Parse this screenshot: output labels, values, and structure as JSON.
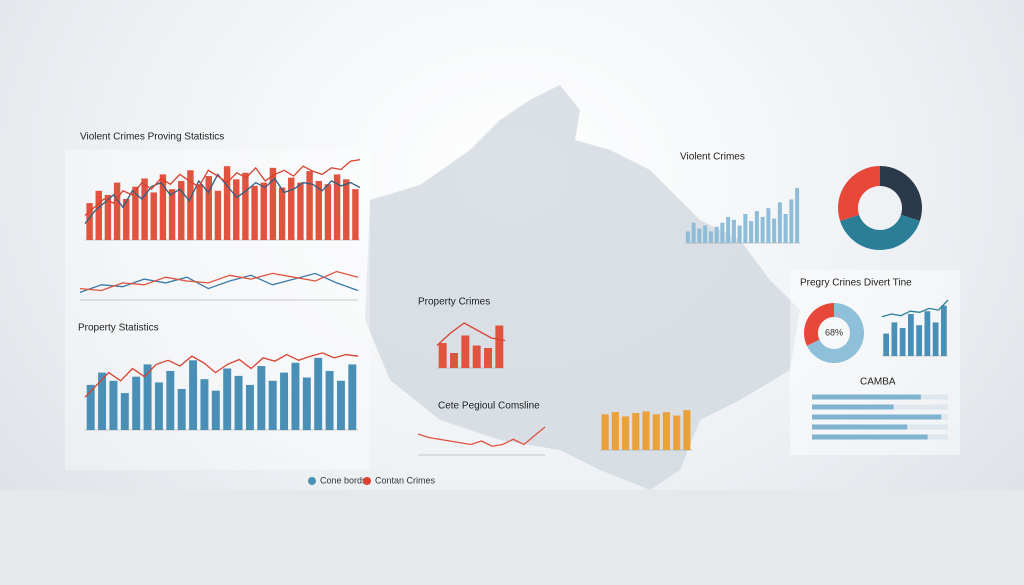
{
  "chart_data": [
    {
      "type": "bar",
      "title": "Violent Crimes Proving Statistics",
      "ylim": [
        0,
        100
      ],
      "series": [
        {
          "kind": "bar",
          "color": "#e0533f",
          "values": [
            45,
            60,
            55,
            70,
            50,
            65,
            75,
            58,
            80,
            62,
            72,
            85,
            68,
            78,
            60,
            90,
            74,
            82,
            66,
            70,
            88,
            64,
            76,
            70,
            84,
            72,
            68,
            80,
            74,
            62
          ]
        },
        {
          "kind": "line",
          "color": "#2f5f80",
          "values": [
            20,
            35,
            45,
            55,
            40,
            60,
            50,
            65,
            70,
            55,
            62,
            48,
            72,
            58,
            80,
            66,
            52,
            60,
            70,
            64,
            75,
            58,
            62,
            70,
            68,
            60,
            72,
            66,
            70,
            64
          ]
        },
        {
          "kind": "line",
          "color": "#d9412e",
          "values": [
            30,
            40,
            50,
            45,
            60,
            55,
            70,
            62,
            75,
            68,
            80,
            72,
            65,
            85,
            78,
            70,
            82,
            76,
            88,
            72,
            80,
            85,
            78,
            90,
            84,
            80,
            88,
            86,
            96,
            98
          ]
        }
      ]
    },
    {
      "type": "line",
      "ylim": [
        0,
        100
      ],
      "series": [
        {
          "kind": "line",
          "color": "#3d7aa8",
          "values": [
            20,
            40,
            35,
            55,
            45,
            60,
            30,
            50,
            65,
            40,
            55,
            70,
            45,
            25
          ]
        },
        {
          "kind": "line",
          "color": "#e0533f",
          "values": [
            30,
            25,
            45,
            40,
            60,
            50,
            45,
            65,
            55,
            70,
            60,
            50,
            75,
            60
          ]
        }
      ]
    },
    {
      "type": "bar",
      "title": "Property Statistics",
      "ylim": [
        0,
        100
      ],
      "series": [
        {
          "kind": "bar",
          "name": "Cone bords",
          "color": "#4a8fb5",
          "values": [
            55,
            70,
            60,
            45,
            65,
            80,
            58,
            72,
            50,
            85,
            62,
            48,
            75,
            66,
            55,
            78,
            60,
            70,
            82,
            64,
            88,
            72,
            60,
            80
          ]
        },
        {
          "kind": "line",
          "name": "Contan Crimes",
          "color": "#d9412e",
          "values": [
            40,
            55,
            70,
            60,
            75,
            65,
            80,
            85,
            78,
            90,
            82,
            70,
            80,
            86,
            75,
            88,
            84,
            92,
            85,
            90,
            94,
            88,
            92,
            90
          ]
        }
      ]
    },
    {
      "type": "bar",
      "title": "Property Crimes",
      "ylim": [
        0,
        100
      ],
      "series": [
        {
          "kind": "bar",
          "color": "#e0533f",
          "values": [
            50,
            30,
            65,
            45,
            40,
            85
          ]
        },
        {
          "kind": "line",
          "color": "#d9412e",
          "values": [
            45,
            70,
            90,
            75,
            60,
            55
          ]
        }
      ]
    },
    {
      "type": "line",
      "title": "Cete Pegioul Comsline",
      "ylim": [
        0,
        100
      ],
      "series": [
        {
          "kind": "line",
          "color": "#e0533f",
          "values": [
            60,
            50,
            45,
            40,
            35,
            30,
            40,
            25,
            30,
            45,
            30,
            55,
            80
          ]
        }
      ]
    },
    {
      "type": "bar",
      "ylim": [
        0,
        100
      ],
      "series": [
        {
          "kind": "bar",
          "color": "#e9a23b",
          "values": [
            85,
            90,
            80,
            88,
            92,
            85,
            90,
            82,
            95
          ]
        }
      ]
    },
    {
      "type": "bar",
      "title": "Violent Crimes",
      "ylim": [
        0,
        100
      ],
      "series": [
        {
          "kind": "bar",
          "color": "#8fbcd6",
          "values": [
            20,
            35,
            25,
            30,
            20,
            28,
            35,
            45,
            40,
            30,
            50,
            38,
            55,
            45,
            60,
            42,
            70,
            50,
            75,
            95
          ]
        }
      ]
    },
    {
      "type": "donut",
      "values": [
        30,
        40,
        30
      ],
      "colors": [
        "#2b3a4a",
        "#2a7f96",
        "#e8483a"
      ]
    },
    {
      "type": "donut",
      "center_label": "68%",
      "title": "Pregry Crines Divert Tine",
      "values": [
        68,
        32
      ],
      "colors": [
        "#8fc0da",
        "#e8483a"
      ]
    },
    {
      "type": "bar",
      "ylim": [
        0,
        100
      ],
      "series": [
        {
          "kind": "bar",
          "color": "#4a8fb5",
          "values": [
            40,
            60,
            50,
            75,
            55,
            80,
            60,
            90
          ]
        },
        {
          "kind": "line",
          "color": "#2a7f96",
          "values": [
            70,
            75,
            72,
            80,
            78,
            85,
            82,
            100
          ]
        }
      ]
    },
    {
      "type": "hbar",
      "title": "CAMBA",
      "ylim": [
        0,
        100
      ],
      "color": "#7fb3cf",
      "values": [
        80,
        60,
        95,
        70,
        85
      ]
    }
  ]
}
